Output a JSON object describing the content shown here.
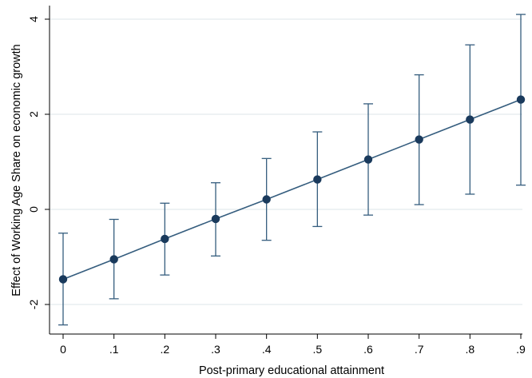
{
  "chart_data": {
    "type": "line",
    "title": "",
    "xlabel": "Post-primary educational attainment",
    "ylabel": "Effect of Working Age Share on economic growth",
    "xlim": [
      0,
      0.9
    ],
    "ylim": [
      -2.5,
      4.2
    ],
    "x_ticks": [
      {
        "value": 0,
        "label": "0"
      },
      {
        "value": 0.1,
        "label": ".1"
      },
      {
        "value": 0.2,
        "label": ".2"
      },
      {
        "value": 0.3,
        "label": ".3"
      },
      {
        "value": 0.4,
        "label": ".4"
      },
      {
        "value": 0.5,
        "label": ".5"
      },
      {
        "value": 0.6,
        "label": ".6"
      },
      {
        "value": 0.7,
        "label": ".7"
      },
      {
        "value": 0.8,
        "label": ".8"
      },
      {
        "value": 0.9,
        "label": ".9"
      }
    ],
    "y_ticks": [
      {
        "value": -2,
        "label": "-2"
      },
      {
        "value": 0,
        "label": "0"
      },
      {
        "value": 2,
        "label": "2"
      },
      {
        "value": 4,
        "label": "4"
      }
    ],
    "grid": "horizontal",
    "legend": "none",
    "series": [
      {
        "x": [
          0,
          0.1,
          0.2,
          0.3,
          0.4,
          0.5,
          0.6,
          0.7,
          0.8,
          0.9
        ],
        "y": [
          -1.47,
          -1.05,
          -0.62,
          -0.2,
          0.21,
          0.63,
          1.05,
          1.47,
          1.89,
          2.31
        ],
        "ci_low": [
          -2.43,
          -1.88,
          -1.38,
          -0.98,
          -0.65,
          -0.36,
          -0.12,
          0.1,
          0.32,
          0.51
        ],
        "ci_high": [
          -0.5,
          -0.21,
          0.13,
          0.56,
          1.07,
          1.63,
          2.22,
          2.83,
          3.46,
          4.1
        ]
      }
    ],
    "colors": {
      "line": "#355d7e",
      "marker": "#1a3a5c",
      "errorbar": "#355d7e",
      "grid": "#e3eaee",
      "axis": "#000000"
    }
  }
}
